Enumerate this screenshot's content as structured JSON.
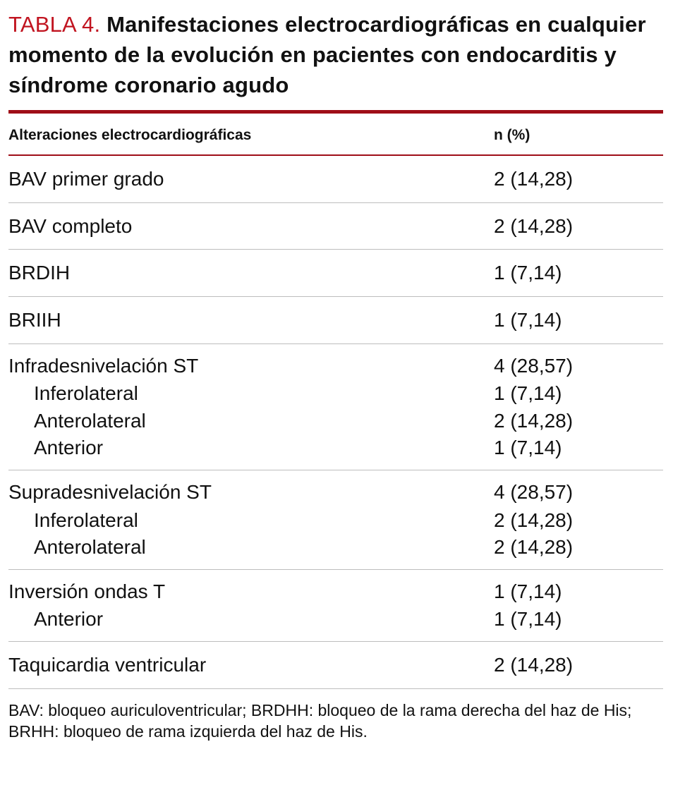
{
  "colors": {
    "accent_red": "#c11420",
    "rule_red": "#9f0e18",
    "separator_gray": "#bdbdbd",
    "text": "#111111"
  },
  "title": {
    "label": "TABLA 4.",
    "text": "Manifestaciones electrocardiográficas en cualquier momento de la evolución en pacientes con endocarditis y síndrome coronario agudo"
  },
  "table": {
    "columns": [
      "Alteraciones electrocardiográficas",
      "n (%)"
    ],
    "rows": [
      {
        "label": "BAV primer grado",
        "value": "2 (14,28)",
        "indent": false
      },
      {
        "label": "BAV completo",
        "value": "2 (14,28)",
        "indent": false
      },
      {
        "label": "BRDIH",
        "value": "1 (7,14)",
        "indent": false
      },
      {
        "label": "BRIIH",
        "value": "1 (7,14)",
        "indent": false
      },
      {
        "label": "Infradesnivelación ST",
        "value": "4 (28,57)",
        "indent": false
      },
      {
        "label": "Inferolateral",
        "value": "1 (7,14)",
        "indent": true
      },
      {
        "label": "Anterolateral",
        "value": "2 (14,28)",
        "indent": true
      },
      {
        "label": "Anterior",
        "value": "1 (7,14)",
        "indent": true
      },
      {
        "label": "Supradesnivelación ST",
        "value": "4 (28,57)",
        "indent": false
      },
      {
        "label": "Inferolateral",
        "value": "2 (14,28)",
        "indent": true
      },
      {
        "label": "Anterolateral",
        "value": "2 (14,28)",
        "indent": true
      },
      {
        "label": "Inversión ondas T",
        "value": "1 (7,14)",
        "indent": false
      },
      {
        "label": "Anterior",
        "value": "1 (7,14)",
        "indent": true
      },
      {
        "label": "Taquicardia ventricular",
        "value": "2 (14,28)",
        "indent": false
      }
    ]
  },
  "footnote": "BAV: bloqueo auriculoventricular; BRDHH: bloqueo de la rama derecha del haz de His; BRHH: bloqueo de rama izquierda del haz de His."
}
